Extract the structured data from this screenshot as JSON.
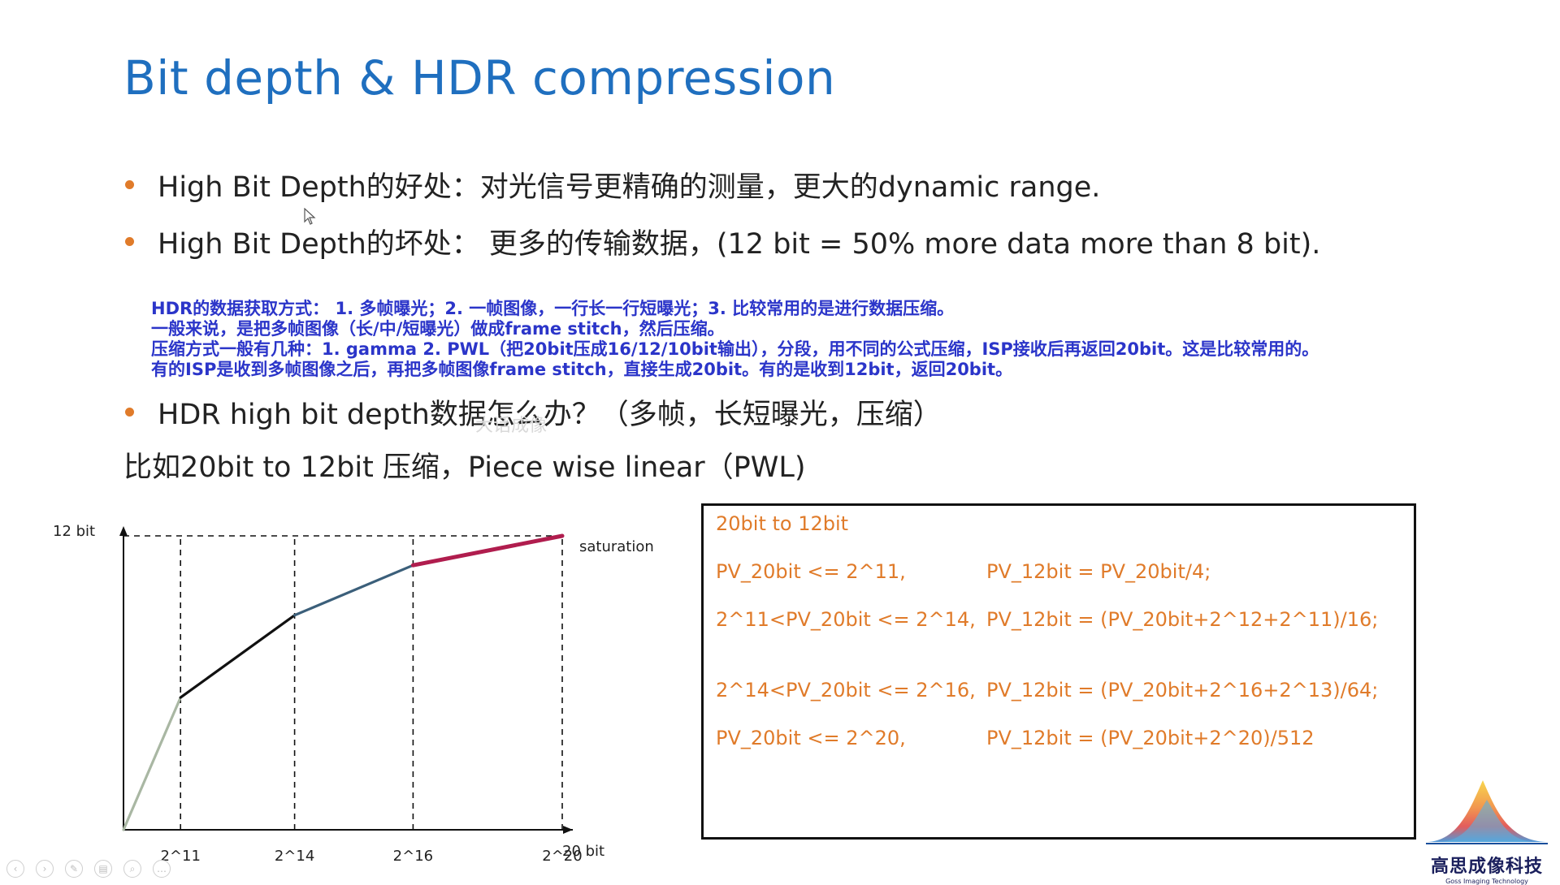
{
  "slide": {
    "title": "Bit depth & HDR compression",
    "bullets": [
      "High Bit Depth的好处：对光信号更精确的测量，更大的dynamic range.",
      "High Bit Depth的坏处：  更多的传输数据，(12 bit = 50% more data more than 8 bit).",
      "HDR high bit depth数据怎么办？（多帧，长短曝光，压缩）"
    ],
    "note_lines": [
      "HDR的数据获取方式： 1. 多帧曝光；2. 一帧图像，一行长一行短曝光；3. 比较常用的是进行数据压缩。",
      "一般来说，是把多帧图像（长/中/短曝光）做成frame stitch，然后压缩。",
      "压缩方式一般有几种：1. gamma 2. PWL（把20bit压成16/12/10bit输出），分段，用不同的公式压缩，ISP接收后再返回20bit。这是比较常用的。",
      "有的ISP是收到多帧图像之后，再把多帧图像frame stitch，直接生成20bit。有的是收到12bit，返回20bit。"
    ],
    "faint_text": "大话成像",
    "example_line": "比如20bit to 12bit 压缩，Piece wise linear（PWL)",
    "formula_box": {
      "heading": "20bit to 12bit",
      "rows": [
        {
          "condition": "PV_20bit <= 2^11,",
          "formula": "PV_12bit = PV_20bit/4;"
        },
        {
          "condition": "2^11<PV_20bit <= 2^14,",
          "formula": "PV_12bit = (PV_20bit+2^12+2^11)/16;"
        },
        {
          "condition": "2^14<PV_20bit <= 2^16,",
          "formula": "PV_12bit = (PV_20bit+2^16+2^13)/64;"
        },
        {
          "condition": "PV_20bit <= 2^20,",
          "formula": "PV_12bit = (PV_20bit+2^20)/512"
        }
      ]
    },
    "logo": {
      "name": "高思成像科技",
      "subtitle": "Goss Imaging Technology"
    }
  },
  "chart_data": {
    "type": "line",
    "ylabel": "12 bit",
    "xlabel": "20 bit",
    "annotation": "saturation",
    "x_ticks": [
      "2^11",
      "2^14",
      "2^16",
      "2^20"
    ],
    "knee_points": [
      {
        "x": 0,
        "y": 0
      },
      {
        "x": 0.13,
        "y": 0.45
      },
      {
        "x": 0.39,
        "y": 0.73
      },
      {
        "x": 0.66,
        "y": 0.9
      },
      {
        "x": 1.0,
        "y": 1.0
      }
    ],
    "segment_colors": [
      "#a9b7a3",
      "#111111",
      "#3b5f7a",
      "#b01d4e"
    ],
    "grid": "dashed-knee-lines"
  },
  "controls": [
    "prev-icon",
    "next-icon",
    "pen-icon",
    "slides-icon",
    "zoom-icon",
    "more-icon"
  ]
}
